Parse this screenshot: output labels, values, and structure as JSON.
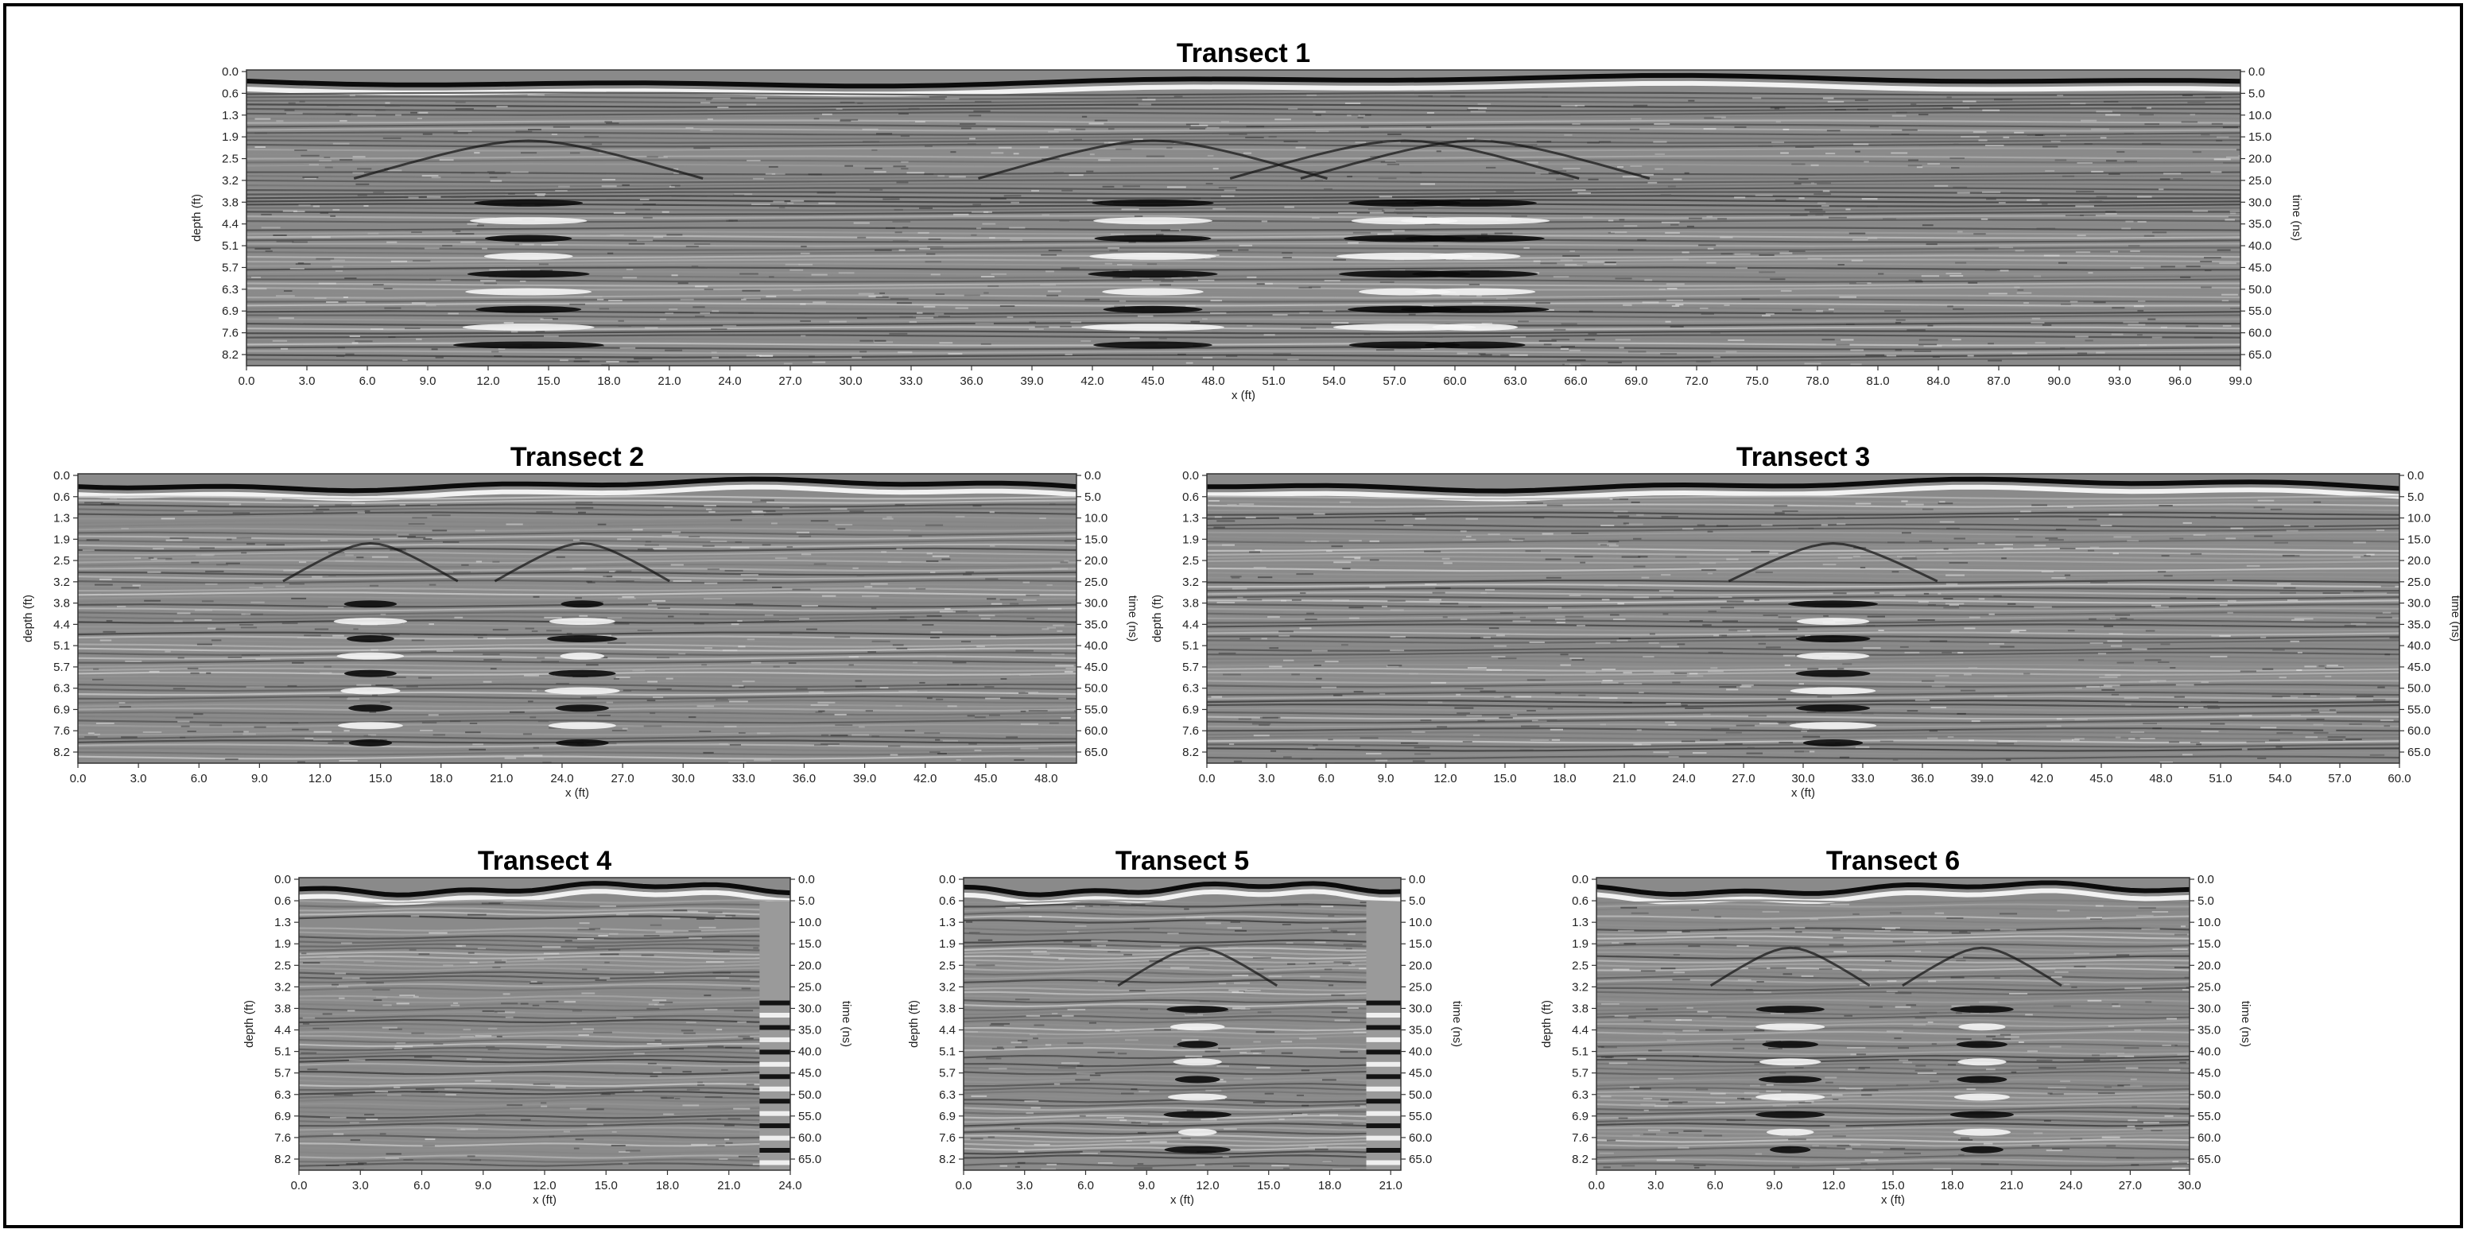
{
  "chart_data": [
    {
      "type": "heatmap",
      "title": "Transect 1",
      "xlabel": "x (ft)",
      "ylabel": "depth (ft)",
      "y2label": "time (ns)",
      "xlim": [
        0,
        99
      ],
      "x_ticks": [
        "0.0",
        "3.0",
        "6.0",
        "9.0",
        "12.0",
        "15.0",
        "18.0",
        "21.0",
        "24.0",
        "27.0",
        "30.0",
        "33.0",
        "36.0",
        "39.0",
        "42.0",
        "45.0",
        "48.0",
        "51.0",
        "54.0",
        "57.0",
        "60.0",
        "63.0",
        "66.0",
        "69.0",
        "72.0",
        "75.0",
        "78.0",
        "81.0",
        "84.0",
        "87.0",
        "90.0",
        "93.0",
        "96.0",
        "99.0"
      ],
      "depth_ticks": [
        "0.0",
        "0.6",
        "1.3",
        "1.9",
        "2.5",
        "3.2",
        "3.8",
        "4.4",
        "5.1",
        "5.7",
        "6.3",
        "6.9",
        "7.6",
        "8.2"
      ],
      "time_ticks": [
        "0.0",
        "5.0",
        "10.0",
        "15.0",
        "20.0",
        "25.0",
        "30.0",
        "35.0",
        "40.0",
        "45.0",
        "50.0",
        "55.0",
        "60.0",
        "65.0"
      ],
      "colormap": [
        "#000000",
        "#ffffff"
      ],
      "strong_reflections_x": [
        14,
        45,
        57.5,
        61
      ],
      "background_strip": null
    },
    {
      "type": "heatmap",
      "title": "Transect 2",
      "xlabel": "x (ft)",
      "ylabel": "depth (ft)",
      "y2label": "time (ns)",
      "xlim": [
        0,
        49.5
      ],
      "x_ticks": [
        "0.0",
        "3.0",
        "6.0",
        "9.0",
        "12.0",
        "15.0",
        "18.0",
        "21.0",
        "24.0",
        "27.0",
        "30.0",
        "33.0",
        "36.0",
        "39.0",
        "42.0",
        "45.0",
        "48.0"
      ],
      "depth_ticks": [
        "0.0",
        "0.6",
        "1.3",
        "1.9",
        "2.5",
        "3.2",
        "3.8",
        "4.4",
        "5.1",
        "5.7",
        "6.3",
        "6.9",
        "7.6",
        "8.2"
      ],
      "time_ticks": [
        "0.0",
        "5.0",
        "10.0",
        "15.0",
        "20.0",
        "25.0",
        "30.0",
        "35.0",
        "40.0",
        "45.0",
        "50.0",
        "55.0",
        "60.0",
        "65.0"
      ],
      "colormap": [
        "#000000",
        "#ffffff"
      ],
      "strong_reflections_x": [
        14.5,
        25
      ],
      "background_strip": null
    },
    {
      "type": "heatmap",
      "title": "Transect 3",
      "xlabel": "x (ft)",
      "ylabel": "depth (ft)",
      "y2label": "time (ns)",
      "xlim": [
        0,
        60
      ],
      "x_ticks": [
        "0.0",
        "3.0",
        "6.0",
        "9.0",
        "12.0",
        "15.0",
        "18.0",
        "21.0",
        "24.0",
        "27.0",
        "30.0",
        "33.0",
        "36.0",
        "39.0",
        "42.0",
        "45.0",
        "48.0",
        "51.0",
        "54.0",
        "57.0",
        "60.0"
      ],
      "depth_ticks": [
        "0.0",
        "0.6",
        "1.3",
        "1.9",
        "2.5",
        "3.2",
        "3.8",
        "4.4",
        "5.1",
        "5.7",
        "6.3",
        "6.9",
        "7.6",
        "8.2"
      ],
      "time_ticks": [
        "0.0",
        "5.0",
        "10.0",
        "15.0",
        "20.0",
        "25.0",
        "30.0",
        "35.0",
        "40.0",
        "45.0",
        "50.0",
        "55.0",
        "60.0",
        "65.0"
      ],
      "colormap": [
        "#000000",
        "#ffffff"
      ],
      "strong_reflections_x": [
        31.5
      ],
      "background_strip": null
    },
    {
      "type": "heatmap",
      "title": "Transect 4",
      "xlabel": "x (ft)",
      "ylabel": "depth (ft)",
      "y2label": "time (ns)",
      "xlim": [
        0,
        24
      ],
      "x_ticks": [
        "0.0",
        "3.0",
        "6.0",
        "9.0",
        "12.0",
        "15.0",
        "18.0",
        "21.0",
        "24.0"
      ],
      "depth_ticks": [
        "0.0",
        "0.6",
        "1.3",
        "1.9",
        "2.5",
        "3.2",
        "3.8",
        "4.4",
        "5.1",
        "5.7",
        "6.3",
        "6.9",
        "7.6",
        "8.2"
      ],
      "time_ticks": [
        "0.0",
        "5.0",
        "10.0",
        "15.0",
        "20.0",
        "25.0",
        "30.0",
        "35.0",
        "40.0",
        "45.0",
        "50.0",
        "55.0",
        "60.0",
        "65.0"
      ],
      "colormap": [
        "#000000",
        "#ffffff"
      ],
      "strong_reflections_x": [],
      "background_strip": [
        22.5,
        24
      ]
    },
    {
      "type": "heatmap",
      "title": "Transect 5",
      "xlabel": "x (ft)",
      "ylabel": "depth (ft)",
      "y2label": "time (ns)",
      "xlim": [
        0,
        21.5
      ],
      "x_ticks": [
        "0.0",
        "3.0",
        "6.0",
        "9.0",
        "12.0",
        "15.0",
        "18.0",
        "21.0"
      ],
      "depth_ticks": [
        "0.0",
        "0.6",
        "1.3",
        "1.9",
        "2.5",
        "3.2",
        "3.8",
        "4.4",
        "5.1",
        "5.7",
        "6.3",
        "6.9",
        "7.6",
        "8.2"
      ],
      "time_ticks": [
        "0.0",
        "5.0",
        "10.0",
        "15.0",
        "20.0",
        "25.0",
        "30.0",
        "35.0",
        "40.0",
        "45.0",
        "50.0",
        "55.0",
        "60.0",
        "65.0"
      ],
      "colormap": [
        "#000000",
        "#ffffff"
      ],
      "strong_reflections_x": [
        11.5
      ],
      "background_strip": [
        19.8,
        21.5
      ]
    },
    {
      "type": "heatmap",
      "title": "Transect 6",
      "xlabel": "x (ft)",
      "ylabel": "depth (ft)",
      "y2label": "time (ns)",
      "xlim": [
        0,
        30
      ],
      "x_ticks": [
        "0.0",
        "3.0",
        "6.0",
        "9.0",
        "12.0",
        "15.0",
        "18.0",
        "21.0",
        "24.0",
        "27.0",
        "30.0"
      ],
      "depth_ticks": [
        "0.0",
        "0.6",
        "1.3",
        "1.9",
        "2.5",
        "3.2",
        "3.8",
        "4.4",
        "5.1",
        "5.7",
        "6.3",
        "6.9",
        "7.6",
        "8.2"
      ],
      "time_ticks": [
        "0.0",
        "5.0",
        "10.0",
        "15.0",
        "20.0",
        "25.0",
        "30.0",
        "35.0",
        "40.0",
        "45.0",
        "50.0",
        "55.0",
        "60.0",
        "65.0"
      ],
      "colormap": [
        "#000000",
        "#ffffff"
      ],
      "strong_reflections_x": [
        9.8,
        19.5
      ],
      "background_strip": null
    }
  ]
}
